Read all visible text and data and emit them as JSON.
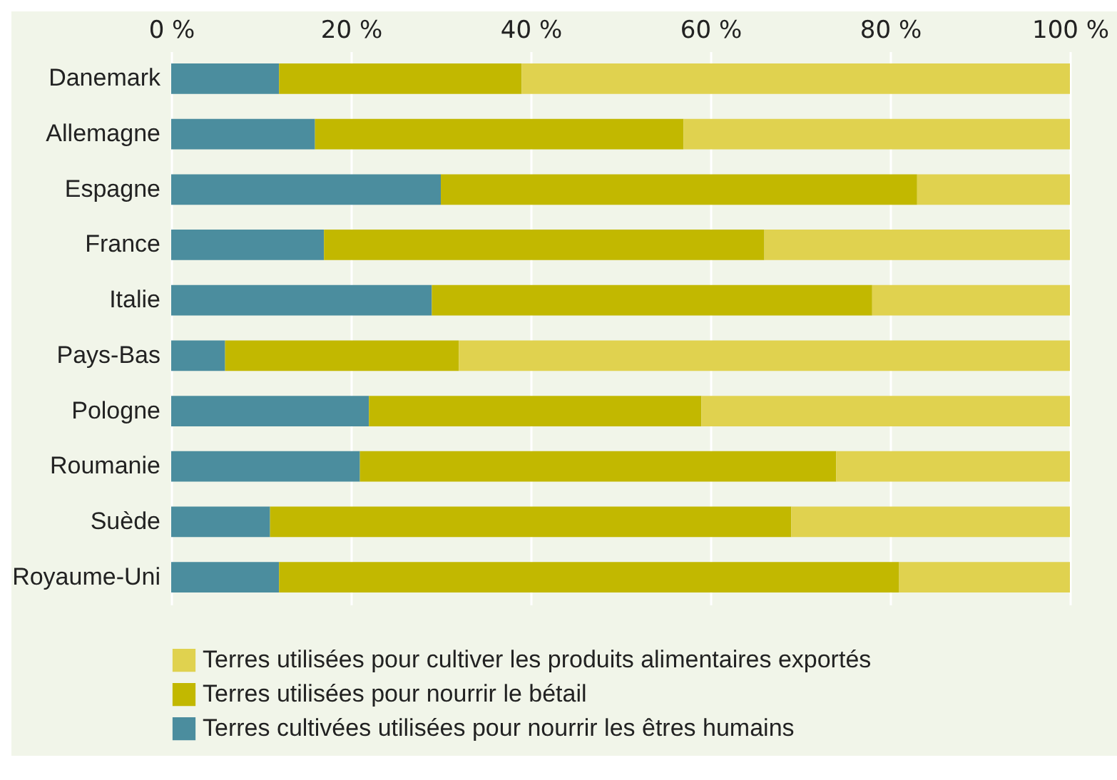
{
  "chart_data": {
    "type": "bar",
    "orientation": "horizontal",
    "stacked": true,
    "categories": [
      "Danemark",
      "Allemagne",
      "Espagne",
      "France",
      "Italie",
      "Pays-Bas",
      "Pologne",
      "Roumanie",
      "Suède",
      "Royaume-Uni"
    ],
    "series": [
      {
        "name": "Terres cultivées utilisées pour nourrir les êtres humains",
        "color": "#4b8d9e",
        "values": [
          12,
          16,
          30,
          17,
          29,
          6,
          22,
          21,
          11,
          12
        ]
      },
      {
        "name": "Terres utilisées pour nourrir le bétail",
        "color": "#c2b800",
        "values": [
          27,
          41,
          53,
          49,
          49,
          26,
          37,
          53,
          58,
          69
        ]
      },
      {
        "name": "Terres utilisées pour cultiver les produits alimentaires exportés",
        "color": "#e0d24f",
        "values": [
          61,
          43,
          17,
          34,
          22,
          68,
          41,
          26,
          31,
          19
        ]
      }
    ],
    "xlim": [
      0,
      100
    ],
    "xticks": [
      {
        "value": 0,
        "label": "0 %"
      },
      {
        "value": 20,
        "label": "20 %"
      },
      {
        "value": 40,
        "label": "40 %"
      },
      {
        "value": 60,
        "label": "60 %"
      },
      {
        "value": 80,
        "label": "80 %"
      },
      {
        "value": 100,
        "label": "100 %"
      }
    ],
    "grid": "x",
    "legend": "bottom"
  }
}
